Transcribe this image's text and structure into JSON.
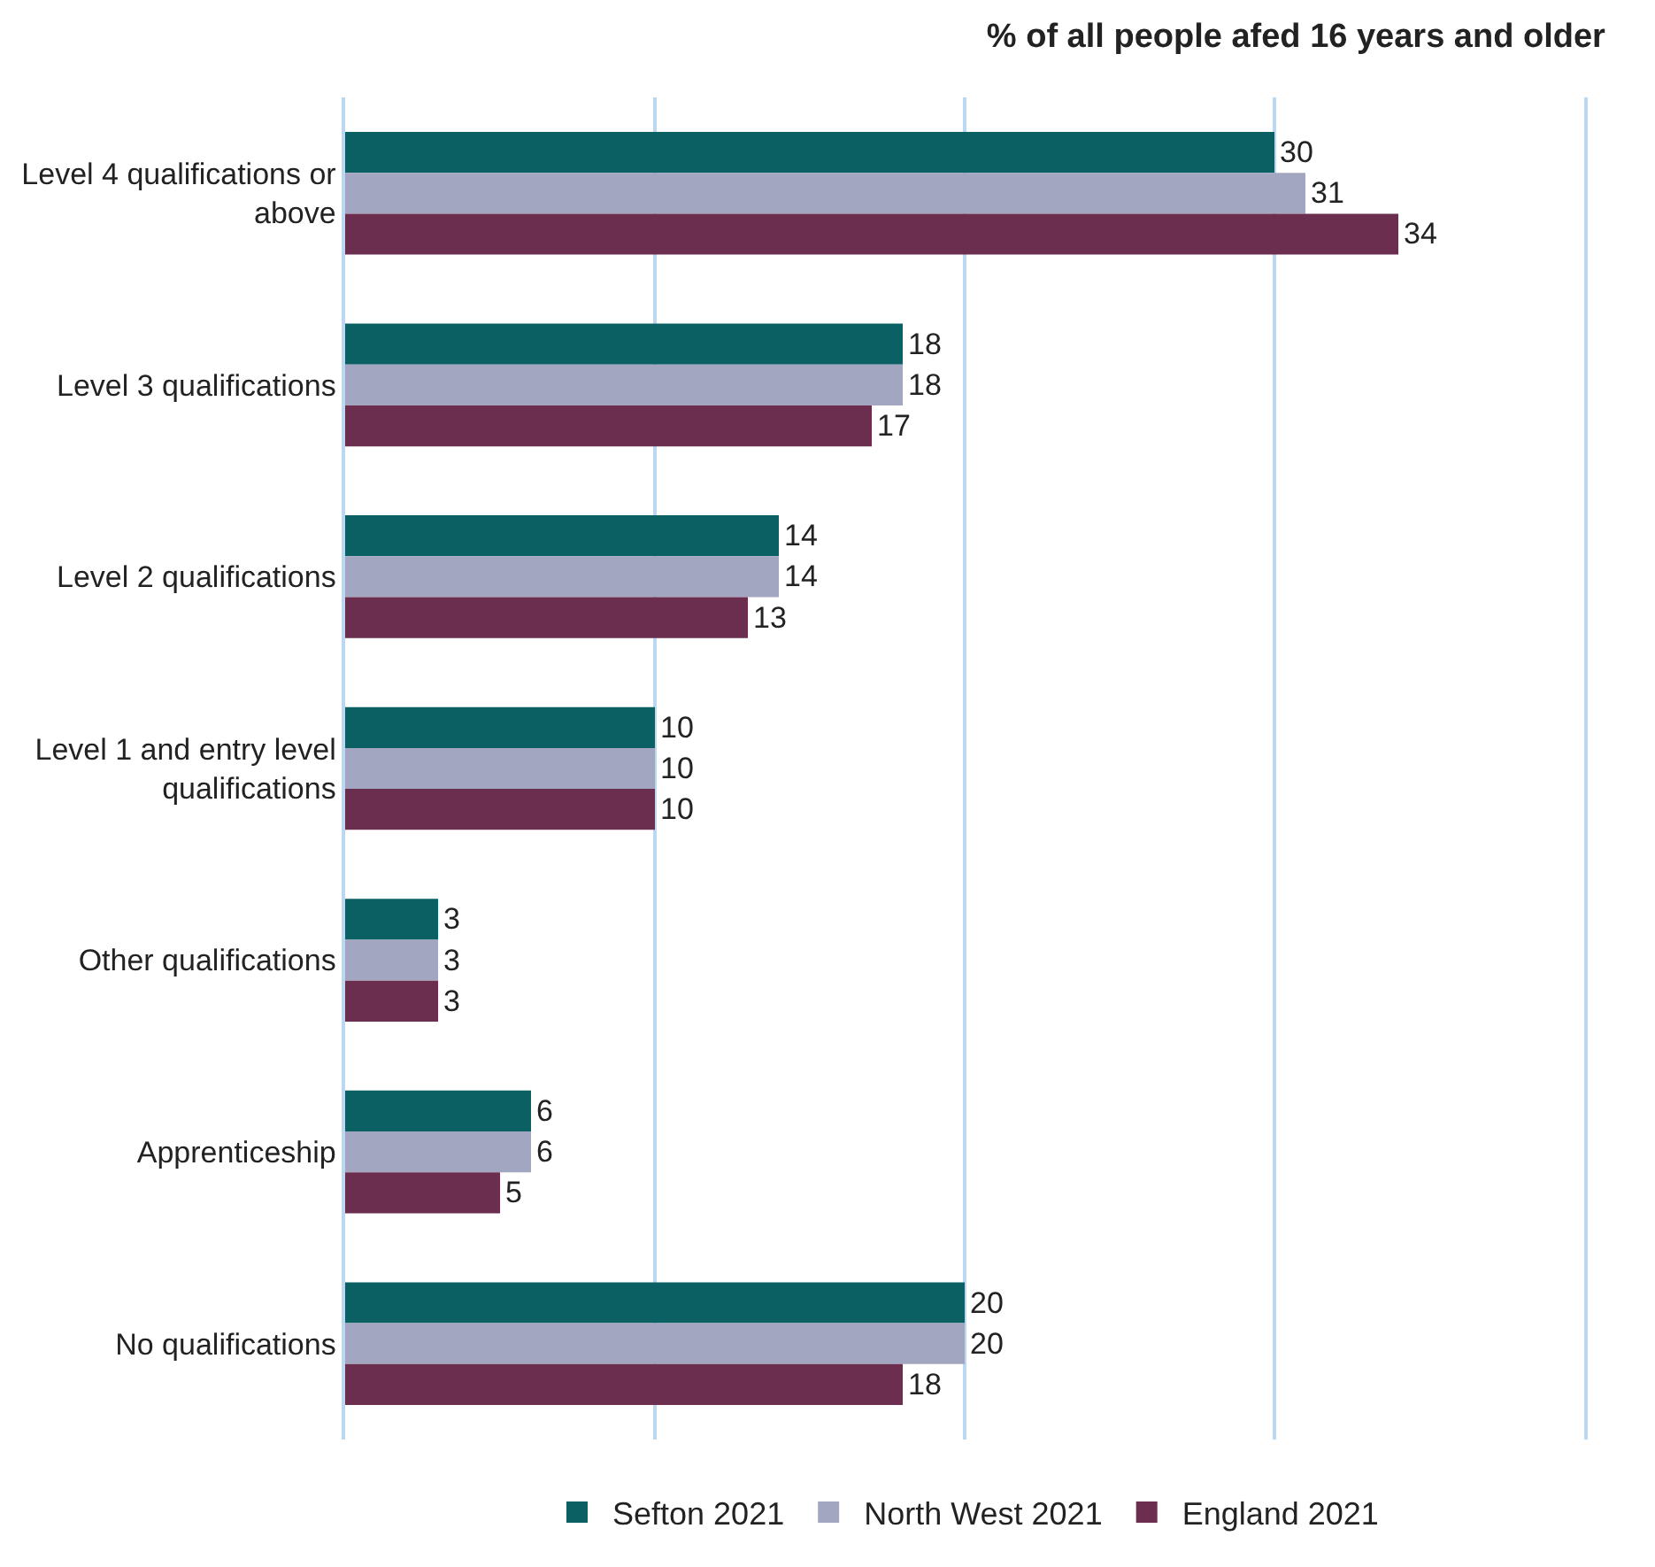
{
  "chart_data": {
    "type": "bar",
    "orientation": "horizontal",
    "title": "% of all people afed 16 years and older",
    "categories": [
      "Level 4 qualifications or above",
      "Level 3 qualifications",
      "Level 2 qualifications",
      "Level 1 and entry level qualifications",
      "Other qualifications",
      "Apprenticeship",
      "No qualifications"
    ],
    "series": [
      {
        "name": "Sefton 2021",
        "color": "#0b6064",
        "values": [
          30,
          18,
          14,
          10,
          3,
          6,
          20
        ]
      },
      {
        "name": "North West 2021",
        "color": "#a3a6c0",
        "values": [
          31,
          18,
          14,
          10,
          3,
          6,
          20
        ]
      },
      {
        "name": "England 2021",
        "color": "#6b2e4e",
        "values": [
          34,
          17,
          13,
          10,
          3,
          5,
          18
        ]
      }
    ],
    "xlim": [
      0,
      40
    ],
    "xticks": [
      {
        "value": 0,
        "label": null
      },
      {
        "value": 10,
        "label": null
      },
      {
        "value": 20,
        "label": null
      },
      {
        "value": 30,
        "label": null
      },
      {
        "value": 40,
        "label": null
      }
    ],
    "tick_labels": "y",
    "grid": "x",
    "legend": "bottom",
    "data_labels": true
  }
}
